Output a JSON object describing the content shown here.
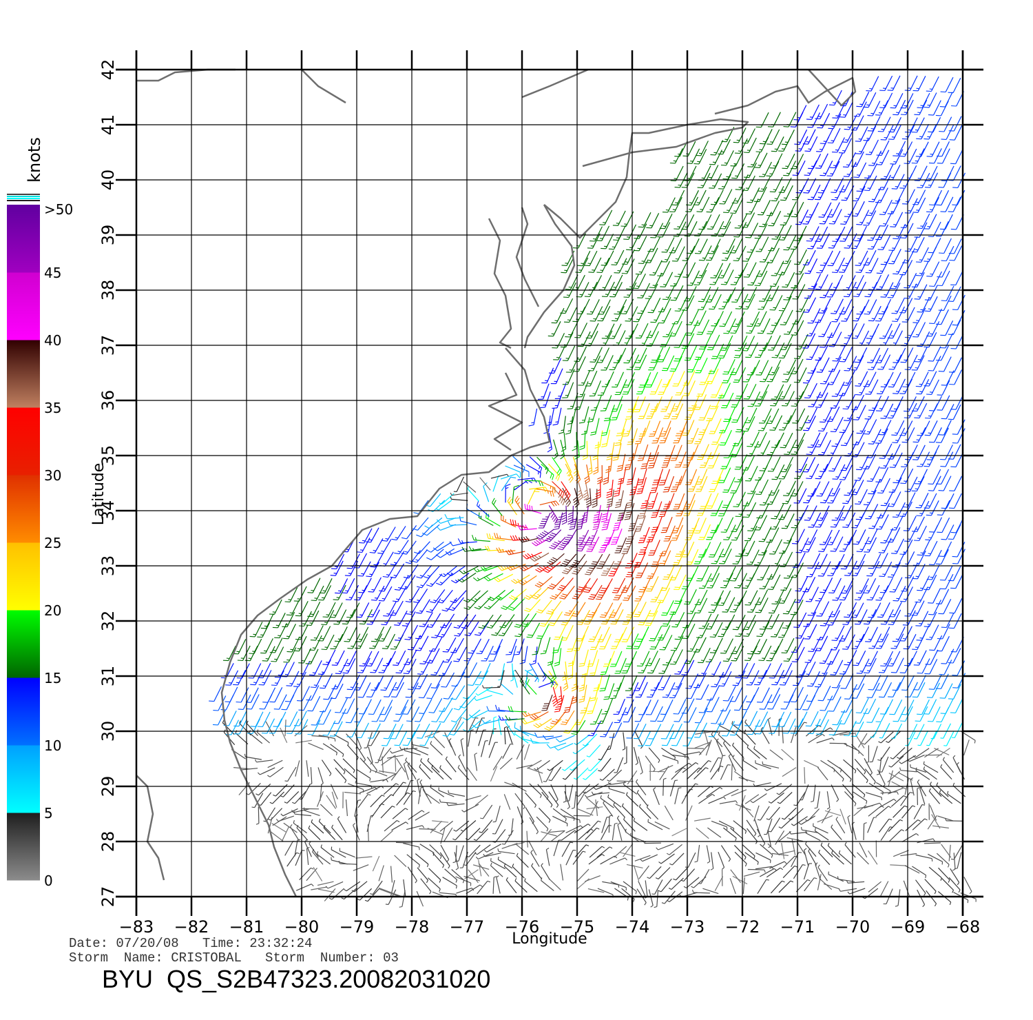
{
  "chart_data": {
    "type": "wind-barb-map",
    "xlabel": "Longitude",
    "ylabel": "Latitude",
    "xlim": [
      -83,
      -68
    ],
    "ylim": [
      27,
      42
    ],
    "xticks": [
      "−83",
      "−82",
      "−81",
      "−80",
      "−79",
      "−78",
      "−77",
      "−76",
      "−75",
      "−74",
      "−73",
      "−72",
      "−71",
      "−70",
      "−69",
      "−68"
    ],
    "yticks": [
      "27",
      "28",
      "29",
      "30",
      "31",
      "32",
      "33",
      "34",
      "35",
      "36",
      "37",
      "38",
      "39",
      "40",
      "41",
      "42"
    ],
    "grid": true,
    "colorbar": {
      "title": "knots",
      "labels": [
        "0",
        "5",
        "10",
        "15",
        "20",
        "25",
        "30",
        "35",
        "40",
        "45",
        ">50"
      ],
      "bins": [
        {
          "range": "0-5",
          "colors": [
            "#8c8c8c",
            "#1e1e1e"
          ]
        },
        {
          "range": "5-10",
          "colors": [
            "#00ffff",
            "#00a0ff"
          ]
        },
        {
          "range": "10-15",
          "colors": [
            "#0070ff",
            "#0000ff"
          ]
        },
        {
          "range": "15-20",
          "colors": [
            "#006400",
            "#00ff00"
          ]
        },
        {
          "range": "20-25",
          "colors": [
            "#ffff00",
            "#ffc000"
          ]
        },
        {
          "range": "25-30",
          "colors": [
            "#ff8c00",
            "#e03000"
          ]
        },
        {
          "range": "30-35",
          "colors": [
            "#e82000",
            "#ff0000"
          ]
        },
        {
          "range": "35-40",
          "colors": [
            "#c08060",
            "#300000"
          ]
        },
        {
          "range": "40-45",
          "colors": [
            "#ff00ff",
            "#d000d0"
          ]
        },
        {
          "range": "45-50",
          "colors": [
            "#a000c0",
            "#6000a0"
          ]
        }
      ]
    },
    "storm_center": {
      "lon": -75.6,
      "lat": 34.0
    },
    "secondary_center": {
      "lon": -75.6,
      "lat": 30.7
    },
    "coastline_color": "#6e6e6e"
  },
  "footer": {
    "date_line": "Date: 07/20/08   Time: 23:32:24",
    "storm_line": "Storm  Name: CRISTOBAL   Storm  Number: 03",
    "product_line": "BYU  QS_S2B47323.20082031020"
  }
}
